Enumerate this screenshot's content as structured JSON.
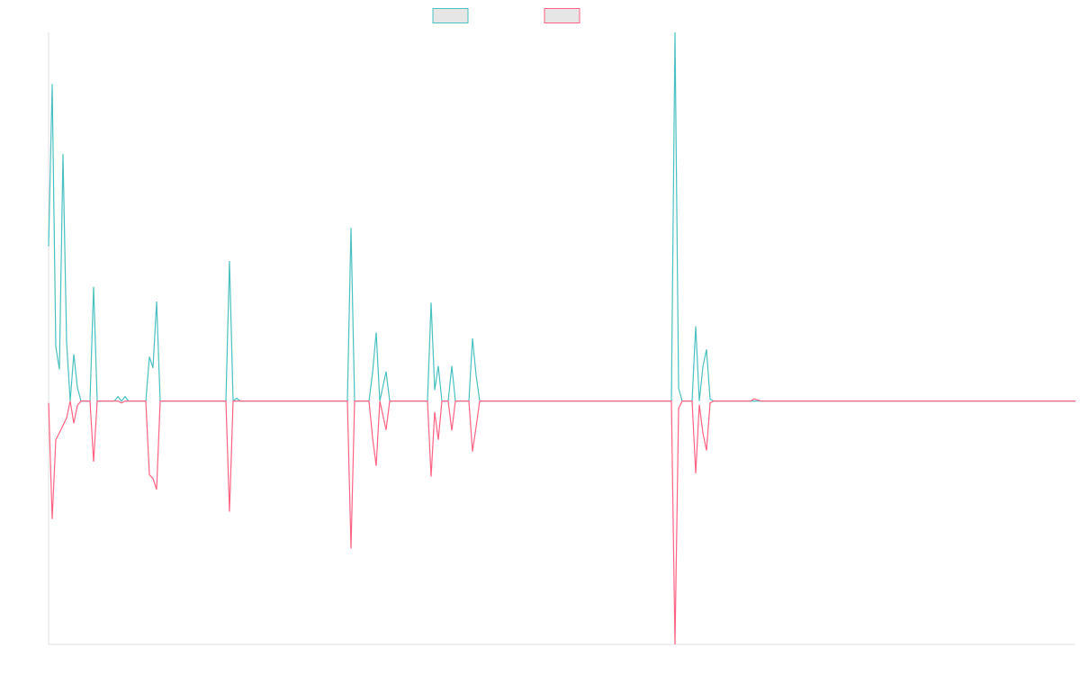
{
  "chart_data": {
    "type": "line",
    "x": [
      0,
      1,
      2,
      3,
      4,
      5,
      6,
      7,
      8,
      9,
      11.5,
      12.5,
      13.5,
      18.25,
      19.25,
      20.25,
      21.25,
      22.25,
      27,
      28,
      29,
      30,
      31,
      49.25,
      50.25,
      51.25,
      52.25,
      53.25,
      83,
      84,
      85,
      89,
      90,
      91,
      92,
      93.75,
      94.75,
      105.25,
      106.25,
      107.25,
      108.25,
      109.25,
      111,
      112,
      113,
      116.75,
      117.75,
      118.75,
      119.75,
      173,
      174,
      175,
      176,
      178.75,
      179.75,
      180.75,
      181.75,
      182.75,
      183.75,
      184.75,
      195,
      196,
      197,
      198,
      285.25
    ],
    "series": [
      {
        "color": "#4bc0c0",
        "values": [
          42,
          86,
          14.7,
          8.6,
          67,
          16,
          0,
          12.7,
          3.7,
          0,
          0,
          31,
          0,
          0,
          1.2,
          0,
          1.2,
          0,
          0,
          12,
          9,
          27,
          0,
          0,
          38,
          0,
          0.8,
          0,
          0,
          47,
          0,
          0,
          7.8,
          18.6,
          0,
          8,
          0,
          0,
          26.7,
          3,
          9.5,
          0,
          0,
          9.5,
          0,
          0,
          17,
          7,
          0,
          0,
          100,
          3.5,
          0,
          0,
          20.3,
          0,
          9.3,
          14,
          0.5,
          0,
          0,
          0,
          0,
          0,
          0
        ]
      },
      {
        "color": "#ff6384",
        "values": [
          -0.5,
          -32,
          -10.5,
          -8.6,
          -6.6,
          -4.6,
          0,
          -6,
          -1.2,
          0,
          0,
          -16.4,
          0,
          0,
          0,
          -0.5,
          0,
          0,
          0,
          -20,
          -21,
          -24,
          0,
          0,
          -30,
          0,
          0,
          0,
          0,
          -40,
          0,
          0,
          -10,
          -17.6,
          0,
          -7.8,
          0,
          0,
          -20.5,
          -3,
          -10.5,
          0,
          0,
          -8,
          0,
          0,
          -13.7,
          -7,
          0,
          0,
          -66,
          -2,
          0,
          0,
          -19.6,
          -1,
          -8.6,
          -13.4,
          -0.5,
          0,
          0,
          0.6,
          0.3,
          0,
          0
        ]
      }
    ],
    "xlim": [
      0,
      285.25
    ],
    "ylim": [
      -66,
      100
    ],
    "grid": false
  }
}
